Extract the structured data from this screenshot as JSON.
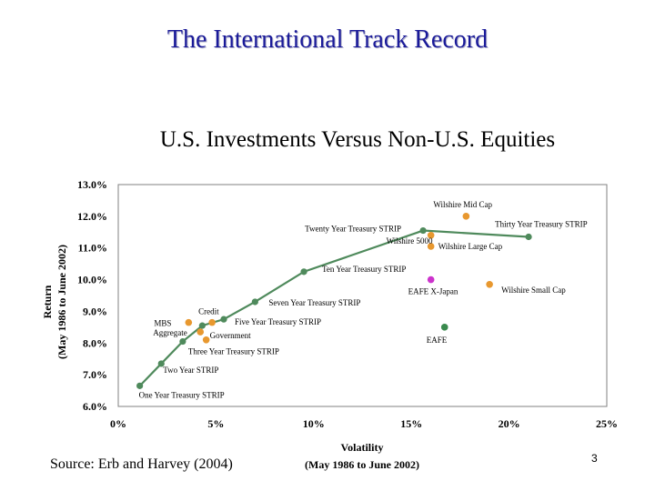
{
  "slide": {
    "title": "The International Track Record",
    "subtitle": "U.S. Investments Versus Non-U.S. Equities",
    "source": "Source: Erb and Harvey (2004)",
    "page_number": "3"
  },
  "chart_data": {
    "type": "scatter",
    "x_axis": {
      "title_lines": [
        "Volatility",
        "(May 1986 to June 2002)"
      ],
      "range": [
        0,
        25
      ],
      "ticks": [
        0,
        5,
        10,
        15,
        20,
        25
      ],
      "tick_labels": [
        "0%",
        "5%",
        "10%",
        "15%",
        "20%",
        "25%"
      ]
    },
    "y_axis": {
      "title_lines": [
        "Return",
        "(May 1986 to June 2002)"
      ],
      "range": [
        6,
        13
      ],
      "ticks": [
        6,
        7,
        8,
        9,
        10,
        11,
        12,
        13
      ],
      "tick_labels": [
        "6.0%",
        "7.0%",
        "8.0%",
        "9.0%",
        "10.0%",
        "11.0%",
        "12.0%",
        "13.0%"
      ]
    },
    "grid": false,
    "colors": {
      "frontier": "#4f8a5c",
      "us": "#e8982f",
      "nonus_eafe": "#3a8a4e",
      "eafe_xjapan": "#cc33cc"
    },
    "frontier": {
      "name": "Treasury STRIPS",
      "points": [
        {
          "label": "One Year Treasury STRIP",
          "x": 1.1,
          "y": 6.65
        },
        {
          "label": "Two Year STRIP",
          "x": 2.2,
          "y": 7.35
        },
        {
          "label": "Three Year Treasury STRIP",
          "x": 3.3,
          "y": 8.05
        },
        {
          "label": "",
          "x": 4.3,
          "y": 8.55
        },
        {
          "label": "Five Year Treasury STRIP",
          "x": 5.4,
          "y": 8.75
        },
        {
          "label": "Seven Year Treasury STRIP",
          "x": 7.0,
          "y": 9.3
        },
        {
          "label": "Ten Year Treasury STRIP",
          "x": 9.5,
          "y": 10.25
        },
        {
          "label": "Twenty Year Treasury STRIP",
          "x": 15.6,
          "y": 11.55
        },
        {
          "label": "Thirty Year Treasury STRIP",
          "x": 21.0,
          "y": 11.35
        }
      ]
    },
    "other_points": [
      {
        "label": "MBS",
        "x": 3.6,
        "y": 8.65,
        "group": "us"
      },
      {
        "label": "Credit",
        "x": 4.8,
        "y": 8.65,
        "group": "us"
      },
      {
        "label": "Aggregate",
        "x": 4.2,
        "y": 8.35,
        "group": "us"
      },
      {
        "label": "Government",
        "x": 4.5,
        "y": 8.1,
        "group": "us"
      },
      {
        "label": "Wilshire 5000",
        "x": 16.0,
        "y": 11.4,
        "group": "us"
      },
      {
        "label": "Wilshire Large Cap",
        "x": 16.0,
        "y": 11.05,
        "group": "us"
      },
      {
        "label": "Wilshire Mid Cap",
        "x": 17.8,
        "y": 12.0,
        "group": "us"
      },
      {
        "label": "Wilshire Small Cap",
        "x": 19.0,
        "y": 9.85,
        "group": "us"
      },
      {
        "label": "EAFE X-Japan",
        "x": 16.0,
        "y": 10.0,
        "group": "nonus_eafe_xjapan"
      },
      {
        "label": "EAFE",
        "x": 16.7,
        "y": 8.5,
        "group": "nonus_eafe"
      }
    ]
  }
}
